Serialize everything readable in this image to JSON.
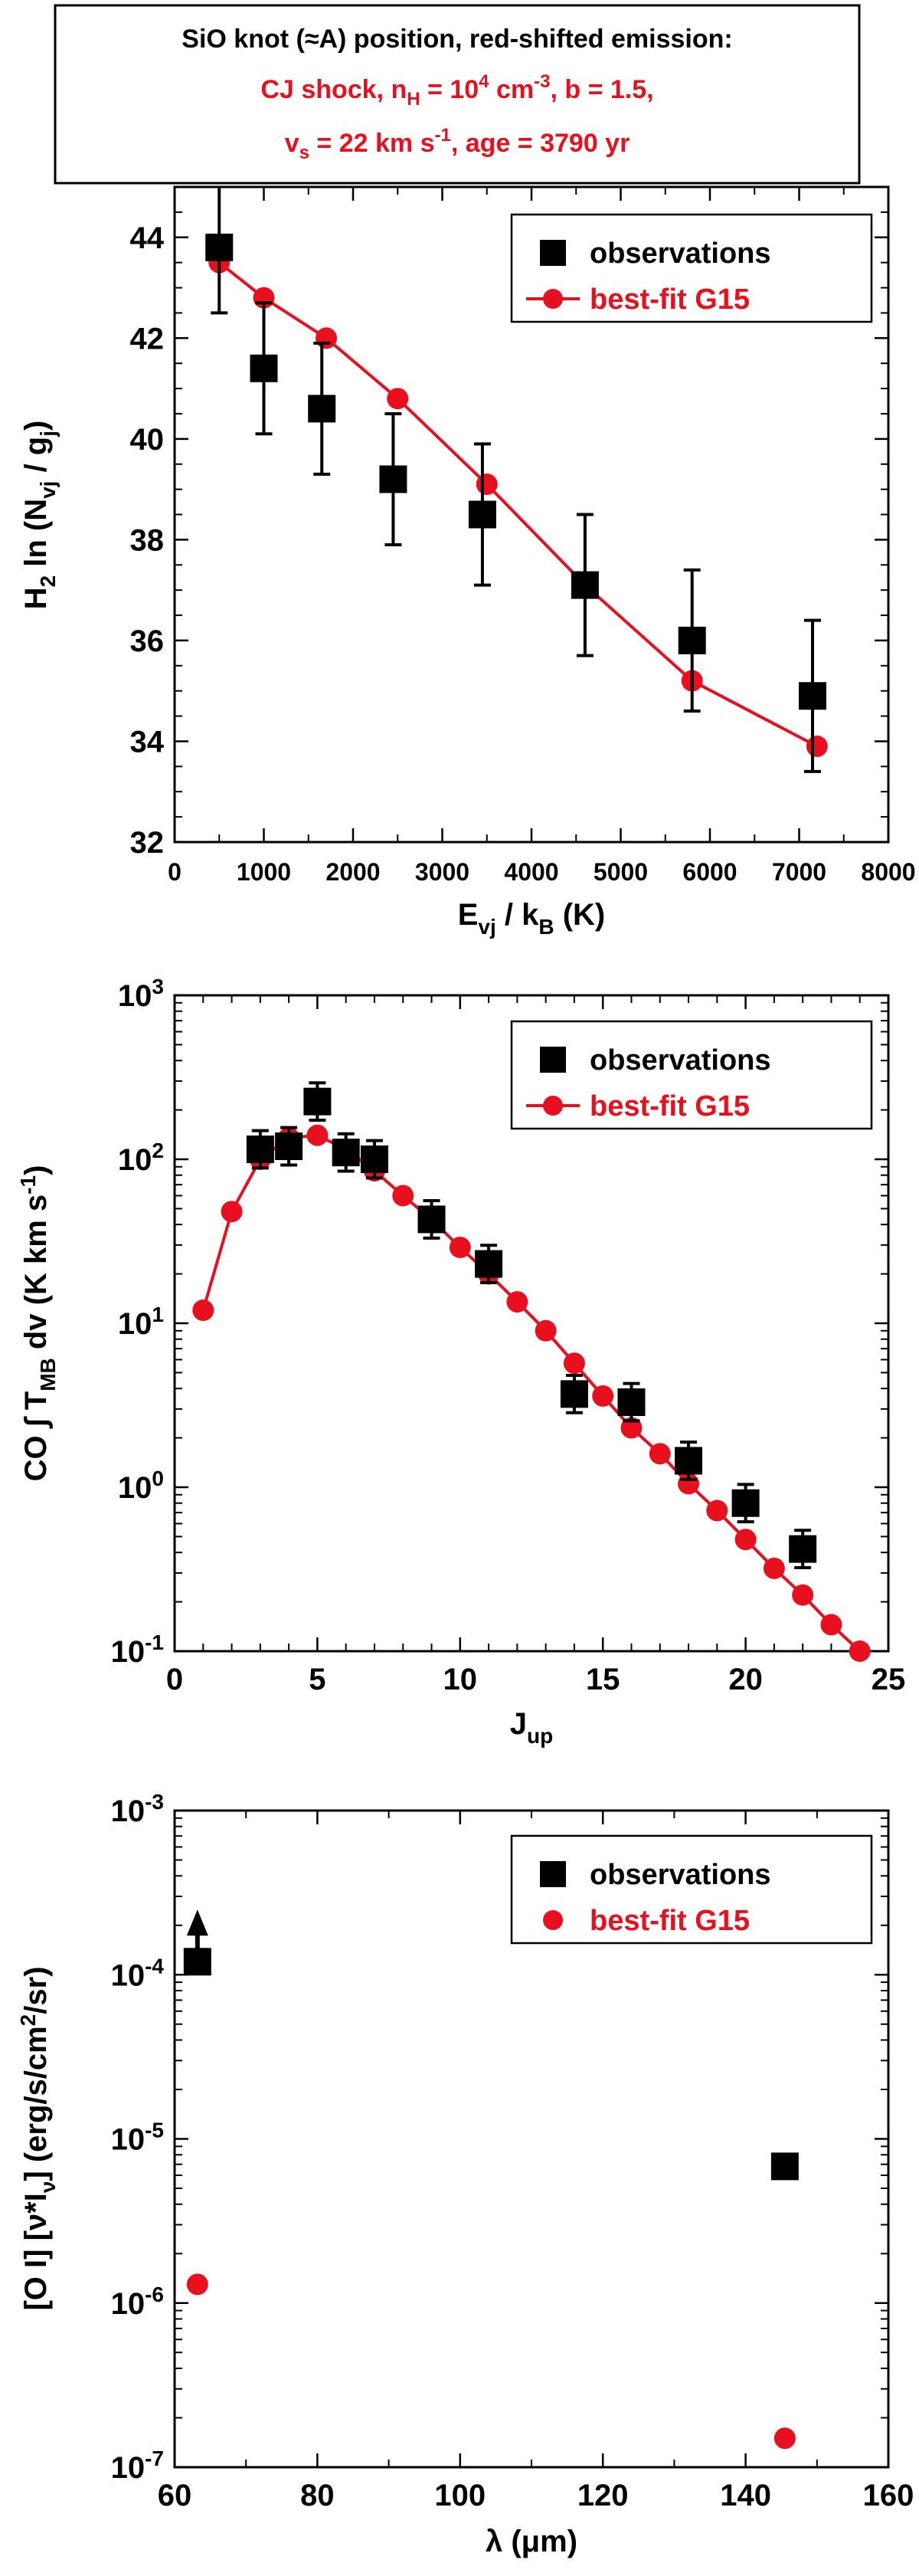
{
  "header": {
    "line1": "SiO knot (≈A) position, red-shifted emission:",
    "line2a": "CJ shock, n",
    "line2_sub": "H",
    "line2b": " = 10",
    "line2_sup": "4",
    "line2c": " cm",
    "line2_sup2": "-3",
    "line2d": ", b = 1.5,",
    "line3a": "v",
    "line3_sub": "s",
    "line3b": " = 22 km s",
    "line3_sup": "-1",
    "line3c": ", age = 3790 yr"
  },
  "colors": {
    "observations": "#000000",
    "model": "#e8101e",
    "header_red": "#e8101e"
  },
  "chart_data": [
    {
      "type": "scatter",
      "panel": "h2",
      "xlabel": {
        "main": "E",
        "sub": "vj",
        "mid": " / k",
        "sub2": "B",
        "tail": " (K)"
      },
      "ylabel": {
        "pre": "H",
        "pre_sub": "2",
        "mid": " ln (N",
        "sub": "vj",
        "mid2": " / g",
        "sub2": "j",
        "tail": ")"
      },
      "xlim": [
        0,
        8000
      ],
      "ylim": [
        32,
        45
      ],
      "yscale": "linear",
      "xticks": [
        0,
        1000,
        2000,
        3000,
        4000,
        5000,
        6000,
        7000,
        8000
      ],
      "yticks": [
        32,
        34,
        36,
        38,
        40,
        42,
        44
      ],
      "legend": {
        "position": "top-right",
        "entries": [
          "observations",
          "best-fit G15"
        ]
      },
      "series": [
        {
          "name": "observations",
          "marker": "square",
          "line": false,
          "x": [
            500,
            1000,
            1650,
            2450,
            3450,
            4600,
            5800,
            7150
          ],
          "y": [
            43.8,
            41.4,
            40.6,
            39.2,
            38.5,
            37.1,
            36.0,
            34.9
          ],
          "yerr": [
            1.3,
            1.3,
            1.3,
            1.3,
            1.4,
            1.4,
            1.4,
            1.5
          ]
        },
        {
          "name": "best-fit G15",
          "marker": "circle",
          "line": true,
          "x": [
            500,
            1000,
            1700,
            2500,
            3500,
            4600,
            5800,
            7200
          ],
          "y": [
            43.5,
            42.8,
            42.0,
            40.8,
            39.1,
            37.1,
            35.2,
            33.9
          ]
        }
      ]
    },
    {
      "type": "scatter",
      "panel": "co",
      "xlabel": {
        "main": "J",
        "sub": "up"
      },
      "ylabel": {
        "pre": "CO  ∫ T",
        "sub": "MB",
        "mid": " dv (K km s",
        "sup": "-1",
        "tail": ")"
      },
      "xlim": [
        0,
        25
      ],
      "ylim": [
        0.1,
        1000
      ],
      "yscale": "log",
      "xticks": [
        0,
        5,
        10,
        15,
        20,
        25
      ],
      "yticks": [
        "10^-1",
        "10^0",
        "10^1",
        "10^2",
        "10^3"
      ],
      "ytick_base": [
        "10",
        "10",
        "10",
        "10",
        "10"
      ],
      "ytick_exp": [
        "-1",
        "0",
        "1",
        "2",
        "3"
      ],
      "legend": {
        "position": "top-right",
        "entries": [
          "observations",
          "best-fit G15"
        ]
      },
      "series": [
        {
          "name": "observations",
          "marker": "square",
          "line": false,
          "x": [
            3,
            4,
            5,
            6,
            7,
            9,
            11,
            14,
            16,
            18,
            20,
            22
          ],
          "y": [
            115,
            120,
            225,
            110,
            100,
            43,
            23,
            3.7,
            3.3,
            1.45,
            0.8,
            0.42
          ],
          "yerr_factor": 1.3
        },
        {
          "name": "best-fit G15",
          "marker": "circle",
          "line": true,
          "x": [
            1,
            2,
            3,
            4,
            5,
            6,
            7,
            8,
            9,
            10,
            11,
            12,
            13,
            14,
            15,
            16,
            17,
            18,
            19,
            20,
            21,
            22,
            23,
            24
          ],
          "y": [
            12,
            48,
            100,
            135,
            140,
            115,
            85,
            60,
            43,
            29,
            20,
            13.5,
            9,
            5.7,
            3.6,
            2.3,
            1.6,
            1.05,
            0.72,
            0.48,
            0.32,
            0.22,
            0.145,
            0.1
          ]
        }
      ]
    },
    {
      "type": "scatter",
      "panel": "oi",
      "xlabel": {
        "main": "λ (μm)"
      },
      "ylabel": {
        "pre": "[O I] [ν*I",
        "sub": "ν",
        "mid": "] (erg/s/cm",
        "sup": "2",
        "tail": "/sr)"
      },
      "xlim": [
        60,
        160
      ],
      "ylim": [
        1e-07,
        0.001
      ],
      "yscale": "log",
      "xticks": [
        60,
        80,
        100,
        120,
        140,
        160
      ],
      "yticks": [
        "10^-7",
        "10^-6",
        "10^-5",
        "10^-4",
        "10^-3"
      ],
      "ytick_base": [
        "10",
        "10",
        "10",
        "10",
        "10"
      ],
      "ytick_exp": [
        "-7",
        "-6",
        "-5",
        "-4",
        "-3"
      ],
      "legend": {
        "position": "top-right",
        "entries": [
          "observations",
          "best-fit G15"
        ]
      },
      "series": [
        {
          "name": "observations",
          "marker": "square",
          "line": false,
          "x": [
            63.2,
            145.5
          ],
          "y": [
            0.00012,
            6.8e-06
          ],
          "lower_limit": [
            true,
            false
          ]
        },
        {
          "name": "best-fit G15",
          "marker": "circle",
          "line": false,
          "x": [
            63.2,
            145.5
          ],
          "y": [
            1.3e-06,
            1.5e-07
          ]
        }
      ]
    }
  ]
}
